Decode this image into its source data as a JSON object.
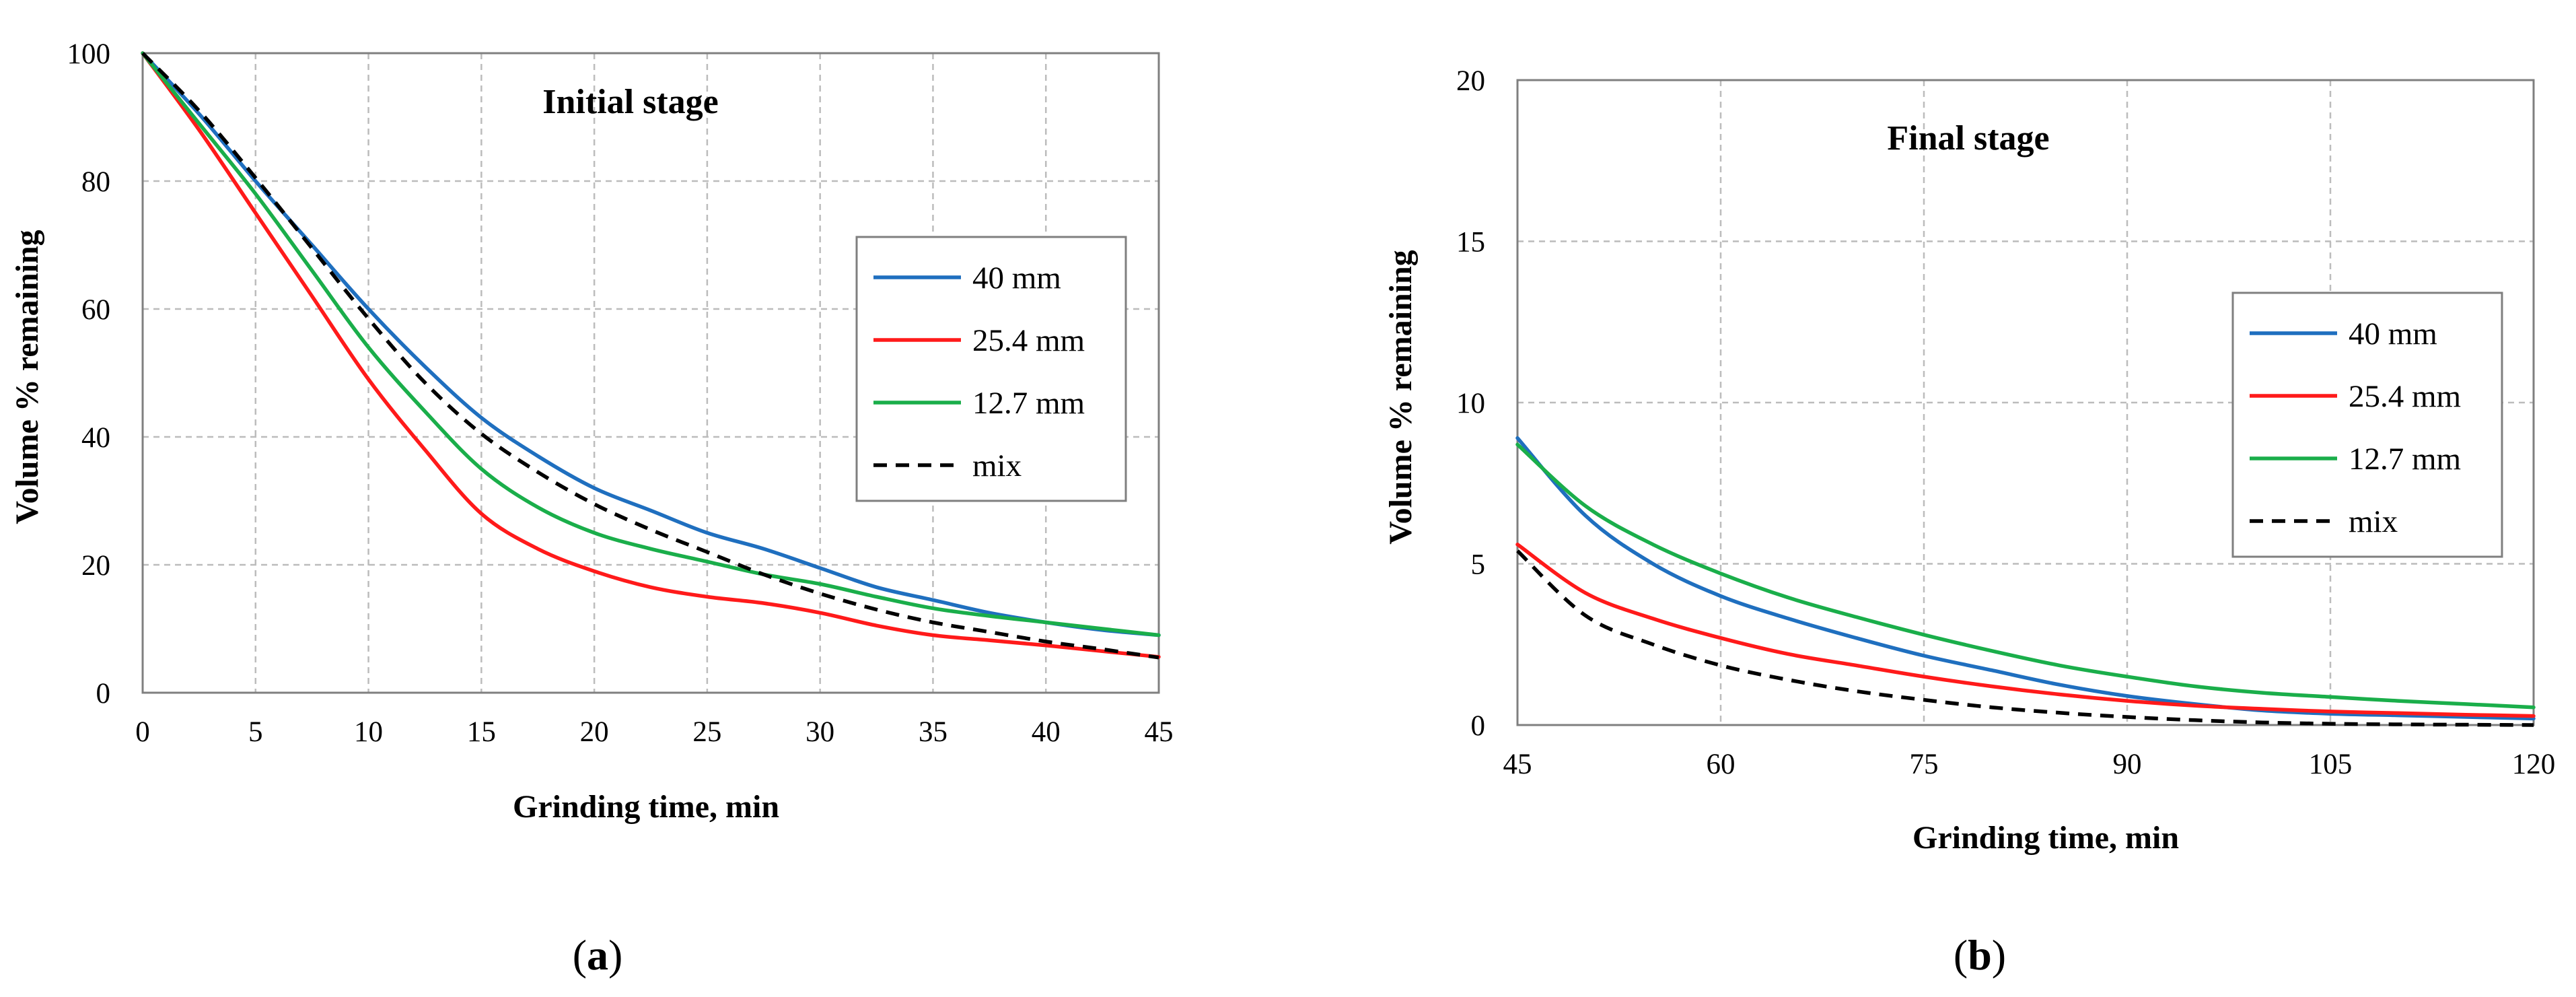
{
  "colors": {
    "s40": "#1f6fbf",
    "s25": "#ff1a1a",
    "s12": "#1aae4a",
    "mix": "#000000",
    "grid": "#bcbcbc"
  },
  "chart_data": [
    {
      "type": "line",
      "panel_label": "a",
      "title": "Initial stage",
      "xlabel": "Grinding time, min",
      "ylabel": "Volume % remaining",
      "xlim": [
        0,
        45
      ],
      "ylim": [
        0,
        100
      ],
      "xticks": [
        "0",
        "5",
        "10",
        "15",
        "20",
        "25",
        "30",
        "35",
        "40",
        "45"
      ],
      "yticks": [
        "0",
        "20",
        "40",
        "60",
        "80",
        "100"
      ],
      "grid": true,
      "legend": "right",
      "series": [
        {
          "name": "40 mm",
          "color_key": "s40",
          "dash": false,
          "x": [
            0,
            2.5,
            5,
            7.5,
            10,
            12.5,
            15,
            17.5,
            20,
            22.5,
            25,
            27.5,
            30,
            32.5,
            35,
            37.5,
            40,
            42.5,
            45
          ],
          "y": [
            100,
            90.5,
            80,
            70,
            60,
            51,
            43,
            37,
            32,
            28.5,
            25,
            22.5,
            19.5,
            16.5,
            14.5,
            12.5,
            11,
            9.8,
            9
          ]
        },
        {
          "name": "25.4 mm",
          "color_key": "s25",
          "dash": false,
          "x": [
            0,
            2.5,
            5,
            7.5,
            10,
            12.5,
            15,
            17.5,
            20,
            22.5,
            25,
            27.5,
            30,
            32.5,
            35,
            37.5,
            40,
            42.5,
            45
          ],
          "y": [
            100,
            88,
            75,
            62,
            49,
            38,
            28,
            22.5,
            19,
            16.5,
            15,
            14,
            12.5,
            10.5,
            9,
            8.2,
            7.4,
            6.5,
            5.6
          ]
        },
        {
          "name": "12.7 mm",
          "color_key": "s12",
          "dash": false,
          "x": [
            0,
            2.5,
            5,
            7.5,
            10,
            12.5,
            15,
            17.5,
            20,
            22.5,
            25,
            27.5,
            30,
            32.5,
            35,
            37.5,
            40,
            42.5,
            45
          ],
          "y": [
            100,
            89,
            78,
            66,
            54,
            44,
            35,
            29,
            25,
            22.5,
            20.5,
            18.5,
            17,
            15,
            13.2,
            12,
            11,
            10,
            9
          ]
        },
        {
          "name": "mix",
          "color_key": "mix",
          "dash": true,
          "x": [
            0,
            2.5,
            5,
            7.5,
            10,
            12.5,
            15,
            17.5,
            20,
            22.5,
            25,
            27.5,
            30,
            32.5,
            35,
            37.5,
            40,
            42.5,
            45
          ],
          "y": [
            100,
            91,
            80.5,
            69.5,
            58.5,
            48.5,
            40.5,
            34.5,
            29.5,
            25.5,
            22,
            18.5,
            15.5,
            13,
            11,
            9.5,
            8,
            6.8,
            5.5
          ]
        }
      ]
    },
    {
      "type": "line",
      "panel_label": "b",
      "title": "Final stage",
      "xlabel": "Grinding time, min",
      "ylabel": "Volume % remaining",
      "xlim": [
        45,
        120
      ],
      "ylim": [
        0,
        20
      ],
      "xticks": [
        "45",
        "60",
        "75",
        "90",
        "105",
        "120"
      ],
      "yticks": [
        "0",
        "5",
        "10",
        "15",
        "20"
      ],
      "grid": true,
      "legend": "right",
      "series": [
        {
          "name": "40 mm",
          "color_key": "s40",
          "dash": false,
          "x": [
            45,
            50,
            55,
            60,
            65,
            70,
            75,
            80,
            85,
            90,
            95,
            100,
            105,
            110,
            115,
            120
          ],
          "y": [
            8.9,
            6.5,
            5,
            4,
            3.3,
            2.7,
            2.15,
            1.7,
            1.25,
            0.9,
            0.65,
            0.45,
            0.35,
            0.3,
            0.25,
            0.2
          ]
        },
        {
          "name": "25.4 mm",
          "color_key": "s25",
          "dash": false,
          "x": [
            45,
            50,
            55,
            60,
            65,
            70,
            75,
            80,
            85,
            90,
            95,
            100,
            105,
            110,
            115,
            120
          ],
          "y": [
            5.6,
            4.1,
            3.3,
            2.7,
            2.2,
            1.85,
            1.5,
            1.2,
            0.95,
            0.75,
            0.6,
            0.5,
            0.42,
            0.37,
            0.32,
            0.28
          ]
        },
        {
          "name": "12.7 mm",
          "color_key": "s12",
          "dash": false,
          "x": [
            45,
            50,
            55,
            60,
            65,
            70,
            75,
            80,
            85,
            90,
            95,
            100,
            105,
            110,
            115,
            120
          ],
          "y": [
            8.7,
            6.8,
            5.6,
            4.7,
            3.95,
            3.35,
            2.8,
            2.3,
            1.85,
            1.5,
            1.2,
            1.0,
            0.87,
            0.75,
            0.65,
            0.55
          ]
        },
        {
          "name": "mix",
          "color_key": "mix",
          "dash": true,
          "x": [
            45,
            50,
            55,
            60,
            65,
            70,
            75,
            80,
            85,
            90,
            95,
            100,
            105,
            110,
            115,
            120
          ],
          "y": [
            5.4,
            3.4,
            2.5,
            1.85,
            1.4,
            1.05,
            0.78,
            0.55,
            0.38,
            0.25,
            0.15,
            0.08,
            0.04,
            0.02,
            0.01,
            0
          ]
        }
      ]
    }
  ]
}
